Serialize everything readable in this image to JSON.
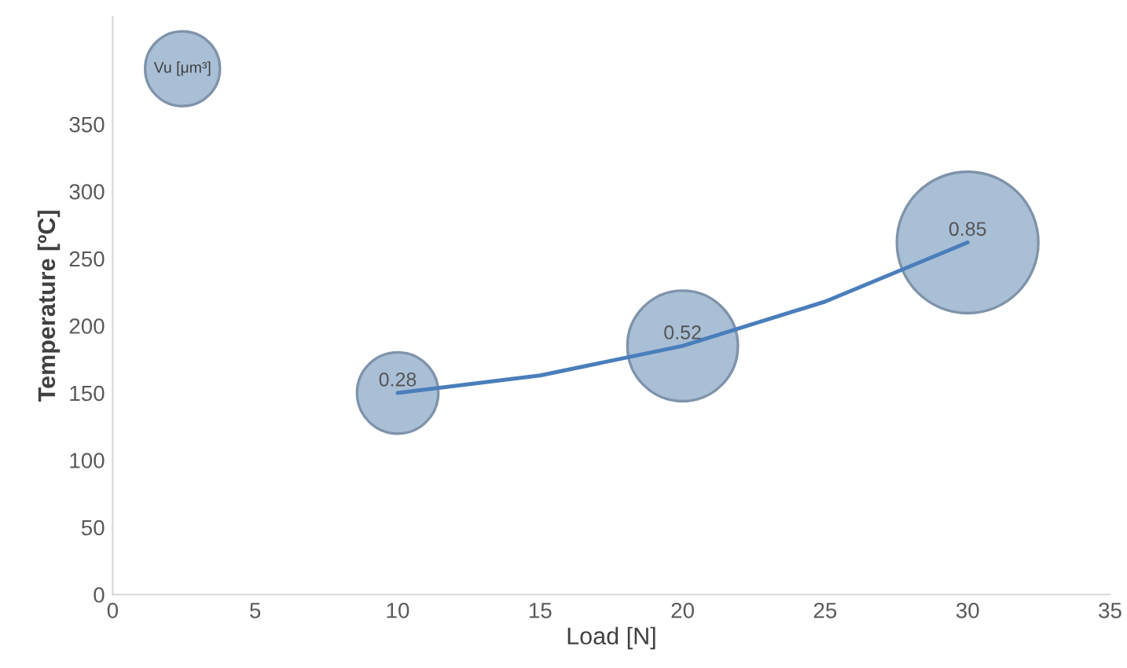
{
  "chart_data": {
    "type": "bubble",
    "xlabel": "Load [N]",
    "ylabel": "Temperature [ºC]",
    "x": [
      10,
      20,
      30
    ],
    "series": [
      {
        "name": "Vu [μm³]",
        "color": "#a9bfd6",
        "values": [
          150,
          185,
          262
        ],
        "sizes": [
          0.33,
          0.61,
          1
        ]
      },
      {
        "type": "line",
        "color": "#4a7ebb",
        "x": [
          10,
          15,
          20,
          25,
          30
        ],
        "values": [
          150,
          163,
          185,
          218,
          262
        ]
      }
    ],
    "annotations": [
      {
        "text": "0.28",
        "x": 10,
        "y": 150
      },
      {
        "text": "0.52",
        "x": 20,
        "y": 185
      },
      {
        "text": "0.85",
        "x": 30,
        "y": 262
      }
    ],
    "xlim": [
      0,
      35
    ],
    "xticks": [
      0,
      5,
      10,
      15,
      20,
      25,
      30,
      35
    ],
    "ylim": [
      0,
      430
    ],
    "yticks": [
      0,
      50,
      100,
      150,
      200,
      250,
      300,
      350
    ],
    "grid": false,
    "legend": "top left"
  }
}
